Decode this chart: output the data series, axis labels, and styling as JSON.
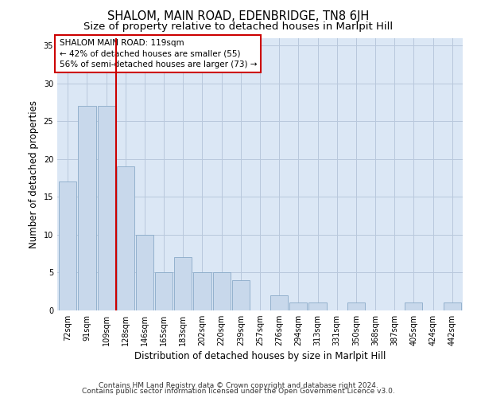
{
  "title": "SHALOM, MAIN ROAD, EDENBRIDGE, TN8 6JH",
  "subtitle": "Size of property relative to detached houses in Marlpit Hill",
  "xlabel": "Distribution of detached houses by size in Marlpit Hill",
  "ylabel": "Number of detached properties",
  "categories": [
    "72sqm",
    "91sqm",
    "109sqm",
    "128sqm",
    "146sqm",
    "165sqm",
    "183sqm",
    "202sqm",
    "220sqm",
    "239sqm",
    "257sqm",
    "276sqm",
    "294sqm",
    "313sqm",
    "331sqm",
    "350sqm",
    "368sqm",
    "387sqm",
    "405sqm",
    "424sqm",
    "442sqm"
  ],
  "values": [
    17,
    27,
    27,
    19,
    10,
    5,
    7,
    5,
    5,
    4,
    0,
    2,
    1,
    1,
    0,
    1,
    0,
    0,
    1,
    0,
    1
  ],
  "bar_color": "#c8d8eb",
  "bar_edge_color": "#8aaac8",
  "vline_x": 2.5,
  "vline_color": "#cc0000",
  "annotation_text": "SHALOM MAIN ROAD: 119sqm\n← 42% of detached houses are smaller (55)\n56% of semi-detached houses are larger (73) →",
  "annotation_box_facecolor": "#ffffff",
  "annotation_box_edgecolor": "#cc0000",
  "ylim": [
    0,
    36
  ],
  "yticks": [
    0,
    5,
    10,
    15,
    20,
    25,
    30,
    35
  ],
  "grid_color": "#b8c8dc",
  "bg_color": "#dbe7f5",
  "footer1": "Contains HM Land Registry data © Crown copyright and database right 2024.",
  "footer2": "Contains public sector information licensed under the Open Government Licence v3.0.",
  "title_fontsize": 10.5,
  "subtitle_fontsize": 9.5,
  "xlabel_fontsize": 8.5,
  "ylabel_fontsize": 8.5,
  "tick_fontsize": 7,
  "annotation_fontsize": 7.5,
  "footer_fontsize": 6.5
}
